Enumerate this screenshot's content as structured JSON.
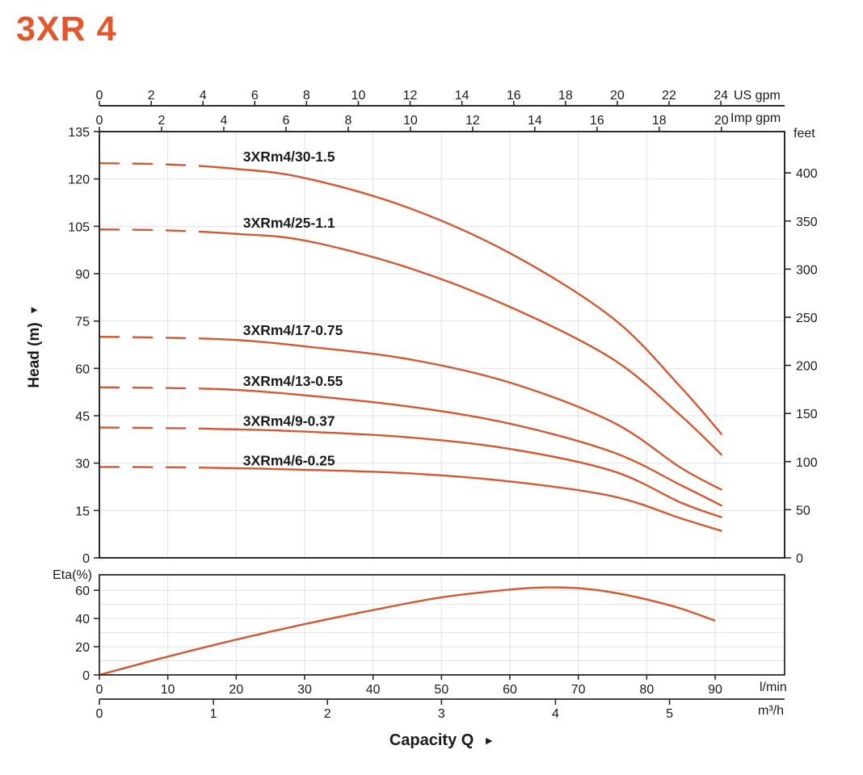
{
  "page": {
    "title": "3XR 4"
  },
  "labels": {
    "head_axis": "Head (m)",
    "head_axis_arrow": "▲",
    "capacity_axis": "Capacity Q",
    "capacity_axis_arrow": "►",
    "eta_axis": "Eta(%)",
    "us_gpm_unit": "US gpm",
    "imp_gpm_unit": "Imp gpm",
    "feet_unit": "feet",
    "lmin_unit": "l/min",
    "m3h_unit": "m³/h"
  },
  "colors": {
    "accent": "#e2572b",
    "curve": "#d4582f",
    "grid": "#e2e2e2",
    "axis": "#2b2b2b",
    "text": "#1b1b1b"
  },
  "chart_data": {
    "type": "line",
    "title": "3XR 4",
    "x_axes": {
      "us_gpm": {
        "unit": "US gpm",
        "ticks": [
          0,
          2,
          4,
          6,
          8,
          10,
          12,
          14,
          16,
          18,
          20,
          22,
          24
        ],
        "lmin_per_unit": 3.785
      },
      "imp_gpm": {
        "unit": "Imp gpm",
        "ticks": [
          0,
          2,
          4,
          6,
          8,
          10,
          12,
          14,
          16,
          18,
          20
        ],
        "lmin_per_unit": 4.546
      },
      "lmin": {
        "unit": "l/min",
        "ticks": [
          0,
          10,
          20,
          30,
          40,
          50,
          60,
          70,
          80,
          90
        ],
        "range": [
          0,
          100
        ]
      },
      "m3h": {
        "unit": "m³/h",
        "ticks": [
          0,
          1,
          2,
          3,
          4,
          5
        ],
        "lmin_per_unit": 16.667
      }
    },
    "y_axes": {
      "head_m": {
        "label": "Head (m)",
        "ticks": [
          0,
          15,
          30,
          45,
          60,
          75,
          90,
          105,
          120,
          135
        ],
        "range": [
          0,
          135
        ]
      },
      "feet": {
        "unit": "feet",
        "ticks": [
          0,
          50,
          100,
          150,
          200,
          250,
          300,
          350,
          400
        ],
        "m_per_unit": 0.3048
      },
      "eta_pct": {
        "label": "Eta(%)",
        "ticks": [
          0,
          20,
          40,
          60
        ],
        "grid_step": 10,
        "range": [
          0,
          71
        ]
      }
    },
    "grid": {
      "vertical_step_lmin": 10,
      "horizontal_step_m": 15
    },
    "dashed_until_lmin": 16.5,
    "curve_label_q_lmin": 21,
    "curves": [
      {
        "model": "3XRm4/30-1.5",
        "points": [
          [
            0,
            125
          ],
          [
            10,
            124.6
          ],
          [
            20,
            123.2
          ],
          [
            30,
            120.3
          ],
          [
            45,
            111
          ],
          [
            60,
            96.5
          ],
          [
            75,
            76
          ],
          [
            85,
            54
          ],
          [
            91,
            39
          ]
        ]
      },
      {
        "model": "3XRm4/25-1.1",
        "points": [
          [
            0,
            104
          ],
          [
            10,
            103.7
          ],
          [
            20,
            102.6
          ],
          [
            30,
            100.5
          ],
          [
            45,
            92
          ],
          [
            60,
            79.5
          ],
          [
            75,
            63
          ],
          [
            85,
            45
          ],
          [
            91,
            32.5
          ]
        ]
      },
      {
        "model": "3XRm4/17-0.75",
        "points": [
          [
            0,
            70
          ],
          [
            10,
            69.7
          ],
          [
            20,
            69
          ],
          [
            30,
            67
          ],
          [
            45,
            63
          ],
          [
            60,
            55.5
          ],
          [
            75,
            43
          ],
          [
            85,
            28.5
          ],
          [
            91,
            21.5
          ]
        ]
      },
      {
        "model": "3XRm4/13-0.55",
        "points": [
          [
            0,
            54
          ],
          [
            10,
            53.8
          ],
          [
            20,
            53.2
          ],
          [
            30,
            51.5
          ],
          [
            45,
            48
          ],
          [
            60,
            42.5
          ],
          [
            75,
            33.5
          ],
          [
            85,
            23
          ],
          [
            91,
            16.5
          ]
        ]
      },
      {
        "model": "3XRm4/9-0.37",
        "points": [
          [
            0,
            41.3
          ],
          [
            10,
            41.1
          ],
          [
            20,
            40.7
          ],
          [
            30,
            40
          ],
          [
            45,
            38.2
          ],
          [
            60,
            34.5
          ],
          [
            75,
            27.5
          ],
          [
            85,
            17.5
          ],
          [
            91,
            12.8
          ]
        ]
      },
      {
        "model": "3XRm4/6-0.25",
        "points": [
          [
            0,
            28.8
          ],
          [
            10,
            28.7
          ],
          [
            20,
            28.4
          ],
          [
            30,
            27.9
          ],
          [
            45,
            26.8
          ],
          [
            60,
            24.2
          ],
          [
            75,
            19.5
          ],
          [
            85,
            12.5
          ],
          [
            91,
            8.5
          ]
        ]
      }
    ],
    "eta_curve": {
      "label": "Eta(%)",
      "points": [
        [
          0,
          0
        ],
        [
          10,
          13
        ],
        [
          20,
          25
        ],
        [
          30,
          36
        ],
        [
          40,
          46
        ],
        [
          50,
          55
        ],
        [
          60,
          60.5
        ],
        [
          65,
          62
        ],
        [
          70,
          61.5
        ],
        [
          75,
          58.5
        ],
        [
          80,
          53.5
        ],
        [
          85,
          47
        ],
        [
          90,
          38.5
        ]
      ]
    }
  }
}
